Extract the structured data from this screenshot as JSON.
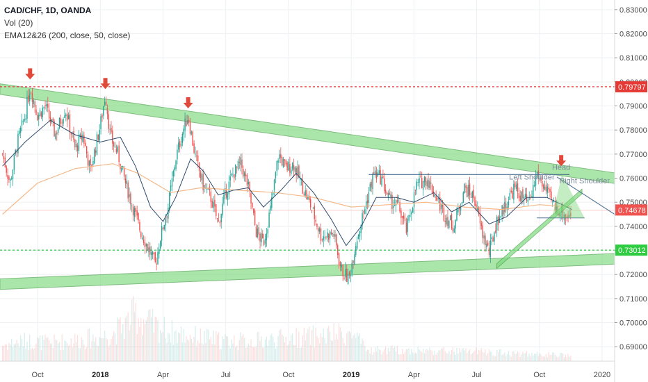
{
  "header": {
    "symbol_line": "CAD/CHF, 1D, OANDA",
    "indicator_vol": "Vol (20)",
    "indicator_ema": "EMA12&26 (200, close, 50, close)"
  },
  "colors": {
    "up": "#26a69a",
    "down": "#ef5350",
    "resistance": "#e53935",
    "support": "#2ecc40",
    "channel_fill": "#7dd87d",
    "channel_edge": "#3c9a3c",
    "ema_fast": "#2e4a6e",
    "ema_slow": "#f5b98a",
    "arrow": "#e04a3b",
    "current_tag": "#ef5350",
    "support_tag": "#2ecc40",
    "resistance_tag": "#e53935",
    "grid": "#eef0f3",
    "neckline": "#4a6f8f"
  },
  "chart_data": {
    "type": "line",
    "title": "CAD/CHF, 1D, OANDA",
    "ylim": [
      0.684,
      0.834
    ],
    "y_ticks": [
      0.83,
      0.82,
      0.81,
      0.8,
      0.79,
      0.78,
      0.77,
      0.76,
      0.75,
      0.74,
      0.73,
      0.72,
      0.71,
      0.7,
      0.69
    ],
    "y_tick_labels": [
      "0.83000",
      "0.82000",
      "0.81000",
      "0.80000",
      "0.79000",
      "0.78000",
      "0.77000",
      "0.76000",
      "0.75000",
      "0.74000",
      "0.73000",
      "0.72000",
      "0.71000",
      "0.70000",
      "0.69000"
    ],
    "x_ticks": [
      {
        "label": "Oct",
        "t": 2017.75,
        "bold": false
      },
      {
        "label": "2018",
        "t": 2018.0,
        "bold": true
      },
      {
        "label": "Apr",
        "t": 2018.25,
        "bold": false
      },
      {
        "label": "Jul",
        "t": 2018.5,
        "bold": false
      },
      {
        "label": "Oct",
        "t": 2018.75,
        "bold": false
      },
      {
        "label": "2019",
        "t": 2019.0,
        "bold": true
      },
      {
        "label": "Apr",
        "t": 2019.25,
        "bold": false
      },
      {
        "label": "Jul",
        "t": 2019.5,
        "bold": false
      },
      {
        "label": "Oct",
        "t": 2019.75,
        "bold": false
      },
      {
        "label": "2020",
        "t": 2020.0,
        "bold": false
      }
    ],
    "xlim": [
      2017.6,
      2020.05
    ],
    "price_path": [
      [
        2017.61,
        0.77
      ],
      [
        2017.64,
        0.758
      ],
      [
        2017.67,
        0.775
      ],
      [
        2017.7,
        0.786
      ],
      [
        2017.72,
        0.798
      ],
      [
        2017.75,
        0.786
      ],
      [
        2017.78,
        0.79
      ],
      [
        2017.82,
        0.778
      ],
      [
        2017.86,
        0.789
      ],
      [
        2017.9,
        0.772
      ],
      [
        2017.93,
        0.778
      ],
      [
        2017.96,
        0.763
      ],
      [
        2018.0,
        0.782
      ],
      [
        2018.02,
        0.795
      ],
      [
        2018.04,
        0.777
      ],
      [
        2018.07,
        0.77
      ],
      [
        2018.1,
        0.758
      ],
      [
        2018.13,
        0.748
      ],
      [
        2018.16,
        0.738
      ],
      [
        2018.19,
        0.731
      ],
      [
        2018.22,
        0.724
      ],
      [
        2018.24,
        0.736
      ],
      [
        2018.27,
        0.748
      ],
      [
        2018.3,
        0.768
      ],
      [
        2018.33,
        0.78
      ],
      [
        2018.35,
        0.786
      ],
      [
        2018.38,
        0.768
      ],
      [
        2018.41,
        0.757
      ],
      [
        2018.44,
        0.752
      ],
      [
        2018.47,
        0.741
      ],
      [
        2018.5,
        0.754
      ],
      [
        2018.53,
        0.762
      ],
      [
        2018.56,
        0.766
      ],
      [
        2018.59,
        0.756
      ],
      [
        2018.62,
        0.738
      ],
      [
        2018.65,
        0.733
      ],
      [
        2018.68,
        0.748
      ],
      [
        2018.71,
        0.77
      ],
      [
        2018.74,
        0.764
      ],
      [
        2018.77,
        0.766
      ],
      [
        2018.8,
        0.758
      ],
      [
        2018.84,
        0.748
      ],
      [
        2018.88,
        0.736
      ],
      [
        2018.93,
        0.737
      ],
      [
        2018.96,
        0.722
      ],
      [
        2018.99,
        0.718
      ],
      [
        2019.02,
        0.734
      ],
      [
        2019.05,
        0.746
      ],
      [
        2019.09,
        0.762
      ],
      [
        2019.12,
        0.76
      ],
      [
        2019.15,
        0.751
      ],
      [
        2019.19,
        0.748
      ],
      [
        2019.22,
        0.738
      ],
      [
        2019.26,
        0.757
      ],
      [
        2019.3,
        0.76
      ],
      [
        2019.34,
        0.752
      ],
      [
        2019.37,
        0.745
      ],
      [
        2019.41,
        0.74
      ],
      [
        2019.45,
        0.756
      ],
      [
        2019.49,
        0.752
      ],
      [
        2019.52,
        0.738
      ],
      [
        2019.55,
        0.729
      ],
      [
        2019.58,
        0.742
      ],
      [
        2019.61,
        0.748
      ],
      [
        2019.65,
        0.756
      ],
      [
        2019.68,
        0.752
      ],
      [
        2019.71,
        0.749
      ],
      [
        2019.74,
        0.762
      ],
      [
        2019.78,
        0.754
      ],
      [
        2019.81,
        0.748
      ],
      [
        2019.84,
        0.746
      ],
      [
        2019.86,
        0.744
      ],
      [
        2019.88,
        0.7468
      ]
    ],
    "ema_fast_path": [
      [
        2017.61,
        0.765
      ],
      [
        2017.7,
        0.775
      ],
      [
        2017.8,
        0.784
      ],
      [
        2017.9,
        0.778
      ],
      [
        2018.0,
        0.775
      ],
      [
        2018.08,
        0.777
      ],
      [
        2018.14,
        0.765
      ],
      [
        2018.2,
        0.748
      ],
      [
        2018.25,
        0.742
      ],
      [
        2018.3,
        0.752
      ],
      [
        2018.36,
        0.768
      ],
      [
        2018.41,
        0.763
      ],
      [
        2018.47,
        0.753
      ],
      [
        2018.53,
        0.755
      ],
      [
        2018.59,
        0.756
      ],
      [
        2018.65,
        0.748
      ],
      [
        2018.72,
        0.755
      ],
      [
        2018.78,
        0.762
      ],
      [
        2018.85,
        0.754
      ],
      [
        2018.92,
        0.743
      ],
      [
        2018.98,
        0.732
      ],
      [
        2019.04,
        0.74
      ],
      [
        2019.1,
        0.752
      ],
      [
        2019.18,
        0.752
      ],
      [
        2019.25,
        0.75
      ],
      [
        2019.33,
        0.754
      ],
      [
        2019.4,
        0.746
      ],
      [
        2019.47,
        0.75
      ],
      [
        2019.55,
        0.741
      ],
      [
        2019.62,
        0.744
      ],
      [
        2019.7,
        0.752
      ],
      [
        2019.78,
        0.752
      ],
      [
        2019.88,
        0.747
      ]
    ],
    "ema_slow_path": [
      [
        2017.61,
        0.745
      ],
      [
        2017.75,
        0.758
      ],
      [
        2017.9,
        0.764
      ],
      [
        2018.05,
        0.766
      ],
      [
        2018.15,
        0.762
      ],
      [
        2018.28,
        0.754
      ],
      [
        2018.4,
        0.756
      ],
      [
        2018.55,
        0.755
      ],
      [
        2018.7,
        0.754
      ],
      [
        2018.85,
        0.752
      ],
      [
        2019.0,
        0.748
      ],
      [
        2019.15,
        0.749
      ],
      [
        2019.3,
        0.75
      ],
      [
        2019.45,
        0.748
      ],
      [
        2019.6,
        0.747
      ],
      [
        2019.75,
        0.749
      ],
      [
        2019.88,
        0.748
      ]
    ],
    "resistance_line": {
      "y": 0.79797,
      "label": "0.79797"
    },
    "support_line": {
      "y": 0.73012,
      "label": "0.73012"
    },
    "current_price": {
      "y": 0.74678,
      "label": "0.74678"
    },
    "upper_channel": [
      [
        2017.6,
        0.797
      ],
      [
        2020.05,
        0.76
      ]
    ],
    "lower_channel": [
      [
        2017.6,
        0.716
      ],
      [
        2020.05,
        0.7265
      ]
    ],
    "neckline": [
      [
        2019.07,
        0.7615
      ],
      [
        2019.87,
        0.7615
      ]
    ],
    "rising_trend": [
      [
        2019.58,
        0.7245
      ],
      [
        2019.92,
        0.7555
      ]
    ],
    "falling_trend": [
      [
        2019.82,
        0.7605
      ],
      [
        2020.05,
        0.745
      ]
    ],
    "small_triangle_base": [
      [
        2019.74,
        0.7435
      ],
      [
        2019.93,
        0.7435
      ]
    ],
    "pattern_labels": [
      {
        "text": "Left Shoulder",
        "t": 2019.72,
        "y": 0.7594
      },
      {
        "text": "Head",
        "t": 2019.837,
        "y": 0.7634
      },
      {
        "text": "Right Shoulder",
        "t": 2019.93,
        "y": 0.7578
      }
    ],
    "peak_arrows": [
      {
        "t": 2017.72,
        "y": 0.801
      },
      {
        "t": 2018.02,
        "y": 0.797
      },
      {
        "t": 2018.35,
        "y": 0.789
      },
      {
        "t": 2019.837,
        "y": 0.765
      }
    ],
    "volume_ylim": [
      0,
      1
    ],
    "volume_profile": [
      [
        2017.61,
        0.18
      ],
      [
        2017.7,
        0.22
      ],
      [
        2017.8,
        0.2
      ],
      [
        2017.9,
        0.23
      ],
      [
        2018.0,
        0.26
      ],
      [
        2018.05,
        0.3
      ],
      [
        2018.1,
        0.4
      ],
      [
        2018.14,
        0.52
      ],
      [
        2018.18,
        0.44
      ],
      [
        2018.22,
        0.38
      ],
      [
        2018.3,
        0.3
      ],
      [
        2018.4,
        0.26
      ],
      [
        2018.5,
        0.22
      ],
      [
        2018.6,
        0.22
      ],
      [
        2018.7,
        0.24
      ],
      [
        2018.8,
        0.26
      ],
      [
        2018.9,
        0.28
      ],
      [
        2018.98,
        0.3
      ],
      [
        2019.02,
        0.26
      ],
      [
        2019.06,
        0.12
      ],
      [
        2019.2,
        0.12
      ],
      [
        2019.4,
        0.11
      ],
      [
        2019.55,
        0.1
      ],
      [
        2019.7,
        0.08
      ],
      [
        2019.88,
        0.06
      ]
    ]
  }
}
